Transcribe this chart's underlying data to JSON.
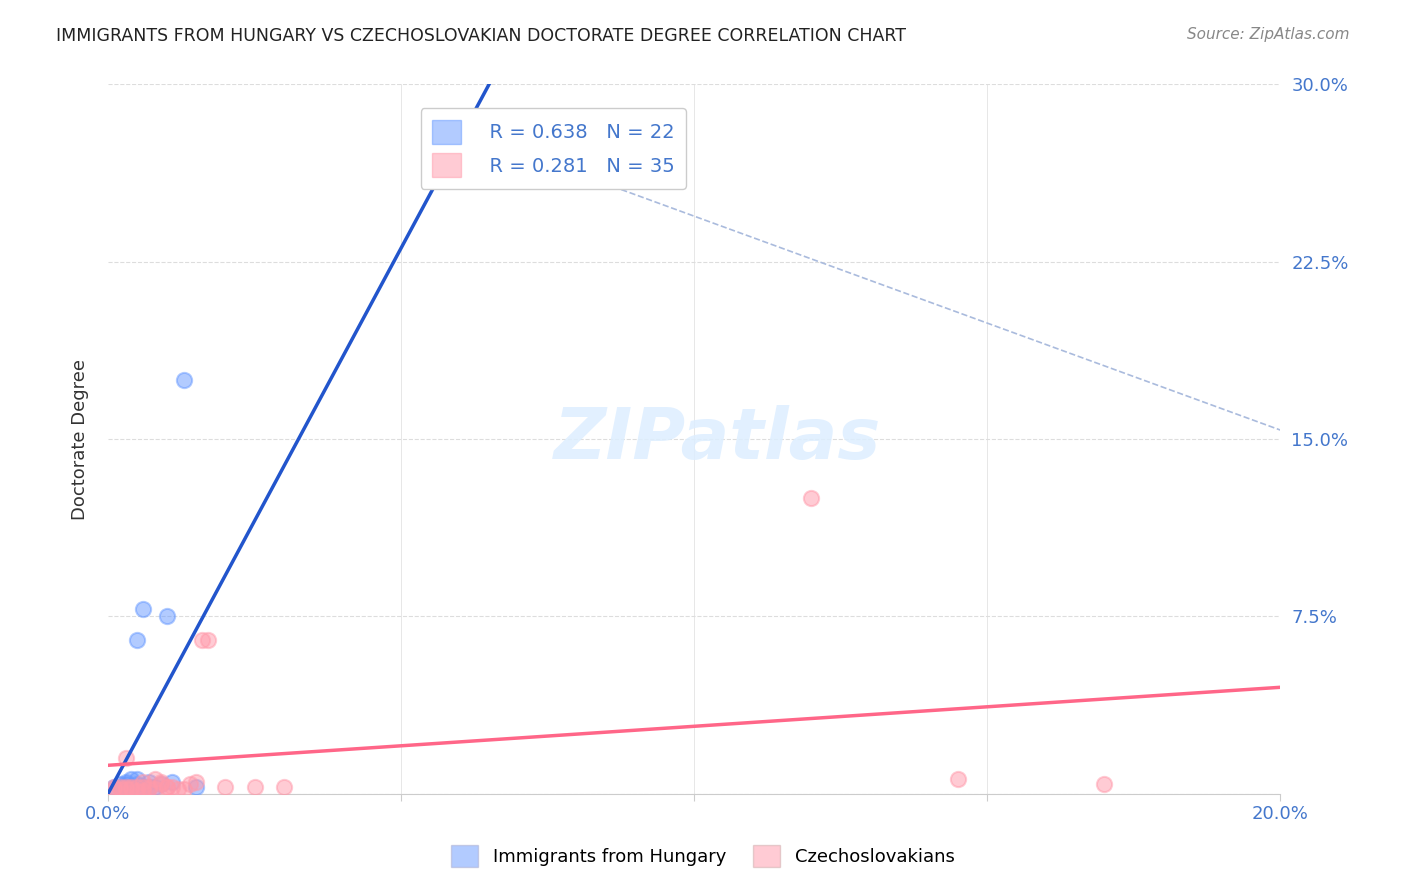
{
  "title": "IMMIGRANTS FROM HUNGARY VS CZECHOSLOVAKIAN DOCTORATE DEGREE CORRELATION CHART",
  "source": "Source: ZipAtlas.com",
  "xlabel_blue": "Immigrants from Hungary",
  "xlabel_pink": "Czechoslovakians",
  "ylabel": "Doctorate Degree",
  "xlim": [
    0.0,
    0.2
  ],
  "ylim": [
    0.0,
    0.3
  ],
  "xticks": [
    0.0,
    0.05,
    0.1,
    0.15,
    0.2
  ],
  "yticks": [
    0.0,
    0.075,
    0.15,
    0.225,
    0.3
  ],
  "xticklabels": [
    "0.0%",
    "",
    "",
    "",
    "20.0%"
  ],
  "yticklabels_right": [
    "",
    "7.5%",
    "15.0%",
    "22.5%",
    "30.0%"
  ],
  "legend_R_blue": "R = 0.638",
  "legend_N_blue": "N = 22",
  "legend_R_pink": "R = 0.281",
  "legend_N_pink": "N = 35",
  "blue_color": "#6699ff",
  "pink_color": "#ff99aa",
  "blue_line_color": "#2255cc",
  "pink_line_color": "#ff6688",
  "dashed_line_color": "#aabbdd",
  "watermark": "ZIPatlas",
  "blue_scatter_x": [
    0.001,
    0.002,
    0.002,
    0.003,
    0.003,
    0.003,
    0.004,
    0.004,
    0.005,
    0.005,
    0.005,
    0.006,
    0.006,
    0.007,
    0.007,
    0.008,
    0.009,
    0.01,
    0.011,
    0.013,
    0.015,
    0.055
  ],
  "blue_scatter_y": [
    0.003,
    0.003,
    0.004,
    0.003,
    0.004,
    0.005,
    0.003,
    0.006,
    0.004,
    0.006,
    0.065,
    0.003,
    0.078,
    0.003,
    0.005,
    0.003,
    0.004,
    0.075,
    0.005,
    0.175,
    0.003,
    0.285
  ],
  "pink_scatter_x": [
    0.001,
    0.001,
    0.002,
    0.002,
    0.003,
    0.003,
    0.003,
    0.004,
    0.004,
    0.005,
    0.005,
    0.006,
    0.006,
    0.006,
    0.007,
    0.007,
    0.008,
    0.008,
    0.009,
    0.009,
    0.01,
    0.01,
    0.011,
    0.012,
    0.013,
    0.014,
    0.015,
    0.016,
    0.017,
    0.02,
    0.025,
    0.03,
    0.12,
    0.145,
    0.17
  ],
  "pink_scatter_y": [
    0.003,
    0.002,
    0.003,
    0.002,
    0.002,
    0.003,
    0.015,
    0.002,
    0.003,
    0.001,
    0.003,
    0.001,
    0.003,
    0.005,
    0.003,
    0.002,
    0.002,
    0.006,
    0.004,
    0.005,
    0.003,
    0.003,
    0.003,
    0.002,
    0.002,
    0.004,
    0.005,
    0.065,
    0.065,
    0.003,
    0.003,
    0.003,
    0.125,
    0.006,
    0.004
  ],
  "blue_trendline_x": [
    0.0,
    0.065
  ],
  "blue_trendline_y": [
    0.0,
    0.3
  ],
  "pink_trendline_x": [
    0.0,
    0.2
  ],
  "pink_trendline_y": [
    0.012,
    0.045
  ],
  "dashed_line_x": [
    0.055,
    0.385
  ],
  "dashed_line_y": [
    0.285,
    0.0
  ],
  "background_color": "#ffffff",
  "grid_color": "#dddddd"
}
